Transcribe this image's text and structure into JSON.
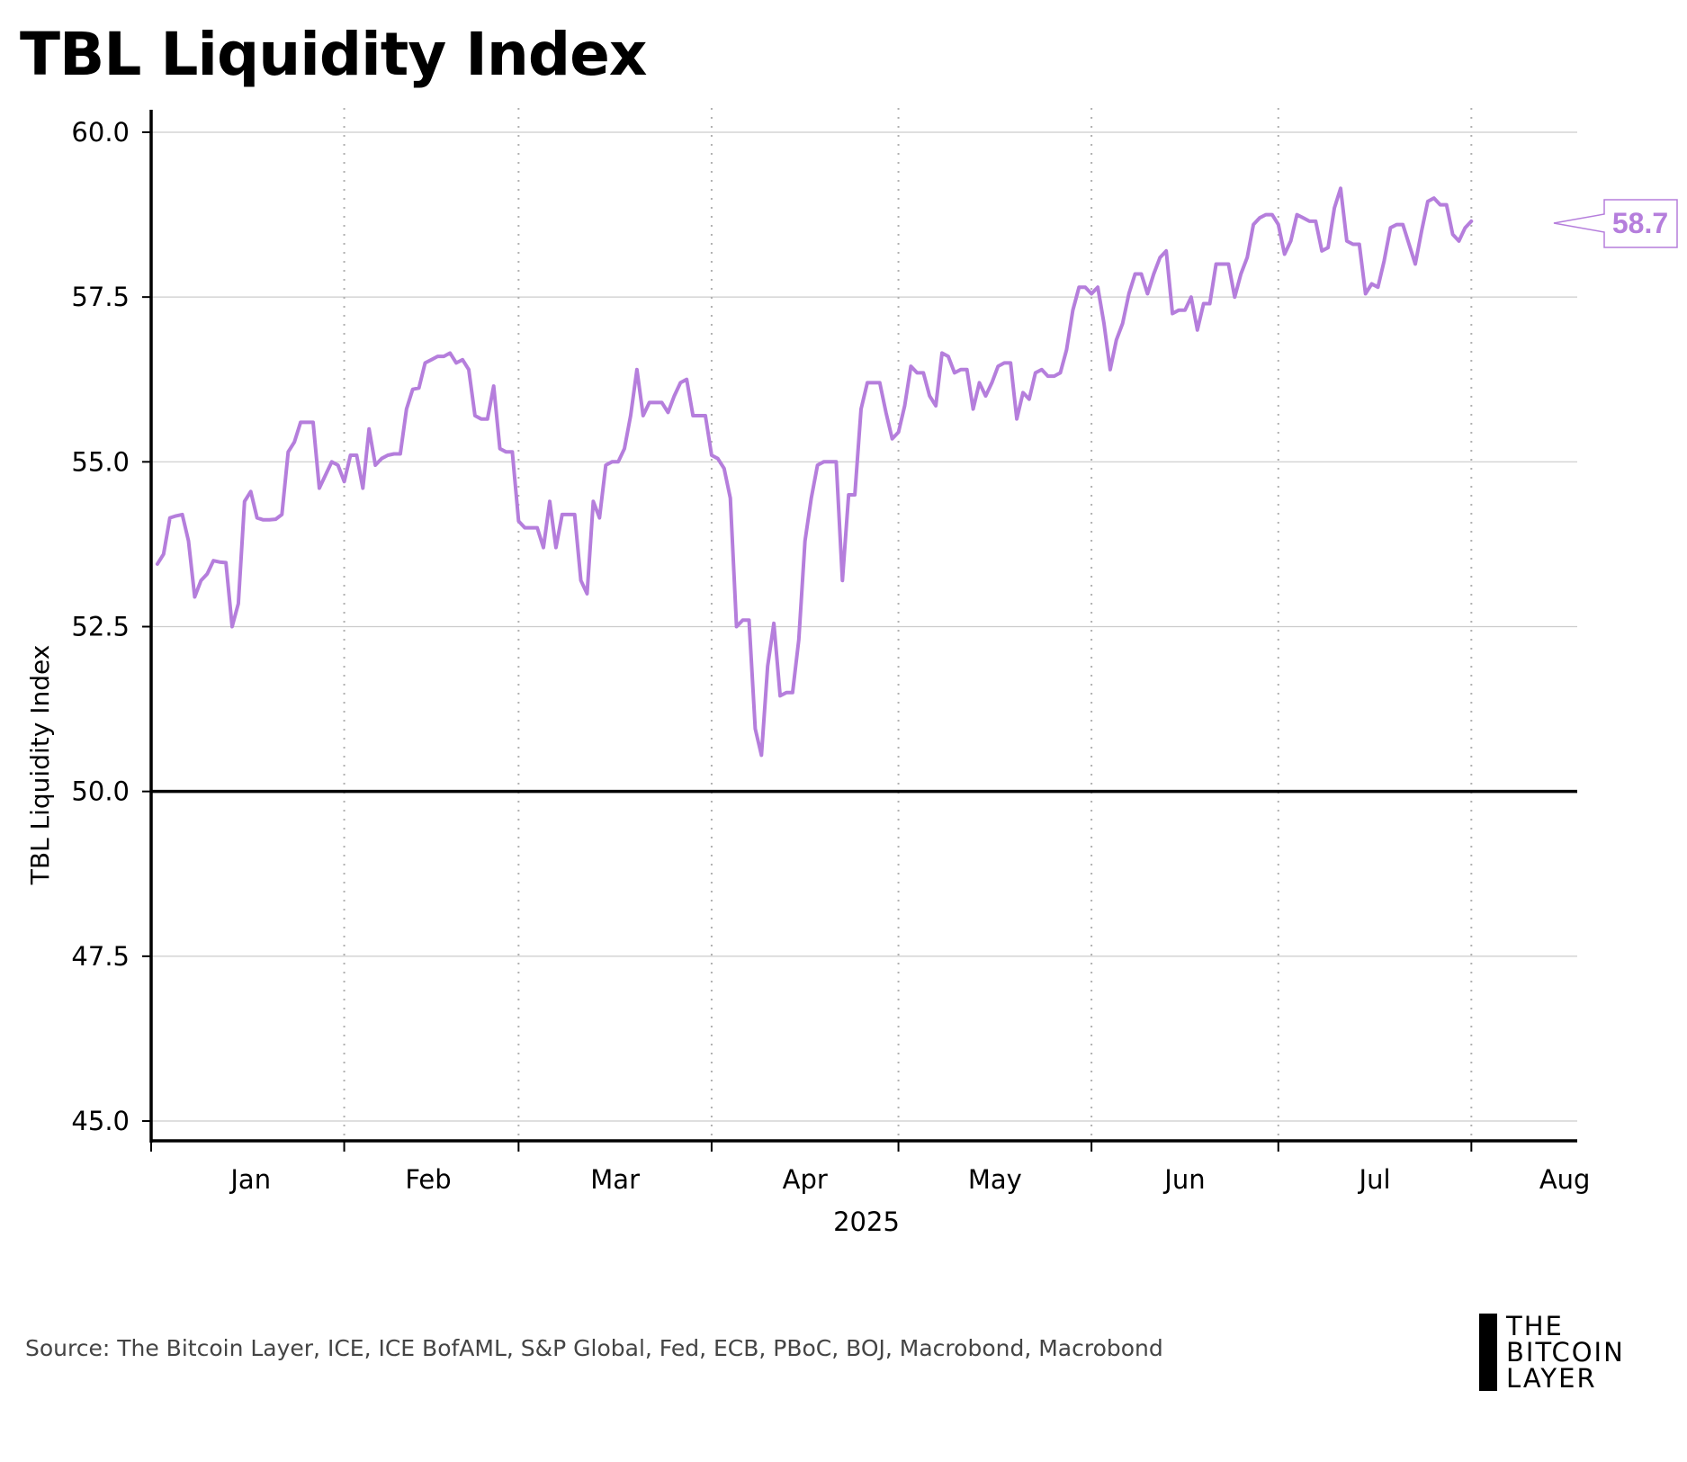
{
  "chart_data": {
    "type": "line",
    "title": "TBL Liquidity Index",
    "ylabel": "TBL Liquidity Index",
    "xlabel": "2025",
    "ylim": [
      44.7,
      60.3
    ],
    "yticks": [
      45.0,
      47.5,
      50.0,
      52.5,
      55.0,
      57.5,
      60.0
    ],
    "ytick_labels": [
      "45.0",
      "47.5",
      "50.0",
      "52.5",
      "55.0",
      "57.5",
      "60.0"
    ],
    "reference_line": 50.0,
    "grid": true,
    "x_domain_days": [
      0,
      229
    ],
    "month_boundaries_days": [
      0,
      31,
      59,
      90,
      120,
      151,
      181,
      212
    ],
    "month_labels": [
      "Jan",
      "Feb",
      "Mar",
      "Apr",
      "May",
      "Jun",
      "Jul",
      "Aug"
    ],
    "month_label_days": [
      16,
      44.5,
      74.5,
      105,
      135.5,
      166,
      196.5,
      227
    ],
    "last_value_label": "58.7",
    "series": [
      {
        "name": "TBL Liquidity Index",
        "color": "#b57edc",
        "points": [
          [
            1,
            53.45
          ],
          [
            2,
            53.6
          ],
          [
            3,
            54.15
          ],
          [
            4,
            54.18
          ],
          [
            5,
            54.2
          ],
          [
            6,
            53.8
          ],
          [
            7,
            52.95
          ],
          [
            8,
            53.2
          ],
          [
            9,
            53.3
          ],
          [
            10,
            53.5
          ],
          [
            11,
            53.48
          ],
          [
            12,
            53.47
          ],
          [
            13,
            52.5
          ],
          [
            14,
            52.85
          ],
          [
            15,
            54.4
          ],
          [
            16,
            54.55
          ],
          [
            17,
            54.15
          ],
          [
            18,
            54.12
          ],
          [
            19,
            54.12
          ],
          [
            20,
            54.13
          ],
          [
            21,
            54.2
          ],
          [
            22,
            55.15
          ],
          [
            23,
            55.3
          ],
          [
            24,
            55.6
          ],
          [
            25,
            55.6
          ],
          [
            26,
            55.6
          ],
          [
            27,
            54.6
          ],
          [
            28,
            54.8
          ],
          [
            29,
            55.0
          ],
          [
            30,
            54.95
          ],
          [
            31,
            54.7
          ],
          [
            32,
            55.1
          ],
          [
            33,
            55.1
          ],
          [
            34,
            54.6
          ],
          [
            35,
            55.5
          ],
          [
            36,
            54.95
          ],
          [
            37,
            55.05
          ],
          [
            38,
            55.1
          ],
          [
            39,
            55.12
          ],
          [
            40,
            55.12
          ],
          [
            41,
            55.8
          ],
          [
            42,
            56.1
          ],
          [
            43,
            56.12
          ],
          [
            44,
            56.5
          ],
          [
            45,
            56.55
          ],
          [
            46,
            56.6
          ],
          [
            47,
            56.6
          ],
          [
            48,
            56.65
          ],
          [
            49,
            56.5
          ],
          [
            50,
            56.55
          ],
          [
            51,
            56.4
          ],
          [
            52,
            55.7
          ],
          [
            53,
            55.65
          ],
          [
            54,
            55.65
          ],
          [
            55,
            56.15
          ],
          [
            56,
            55.2
          ],
          [
            57,
            55.15
          ],
          [
            58,
            55.15
          ],
          [
            59,
            54.1
          ],
          [
            60,
            54.0
          ],
          [
            61,
            54.0
          ],
          [
            62,
            54.0
          ],
          [
            63,
            53.7
          ],
          [
            64,
            54.4
          ],
          [
            65,
            53.7
          ],
          [
            66,
            54.2
          ],
          [
            67,
            54.2
          ],
          [
            68,
            54.2
          ],
          [
            69,
            53.2
          ],
          [
            70,
            53.0
          ],
          [
            71,
            54.4
          ],
          [
            72,
            54.15
          ],
          [
            73,
            54.95
          ],
          [
            74,
            55.0
          ],
          [
            75,
            55.0
          ],
          [
            76,
            55.2
          ],
          [
            77,
            55.7
          ],
          [
            78,
            56.4
          ],
          [
            79,
            55.7
          ],
          [
            80,
            55.9
          ],
          [
            81,
            55.9
          ],
          [
            82,
            55.9
          ],
          [
            83,
            55.75
          ],
          [
            84,
            56.0
          ],
          [
            85,
            56.2
          ],
          [
            86,
            56.25
          ],
          [
            87,
            55.7
          ],
          [
            88,
            55.7
          ],
          [
            89,
            55.7
          ],
          [
            90,
            55.1
          ],
          [
            91,
            55.05
          ],
          [
            92,
            54.9
          ],
          [
            93,
            54.45
          ],
          [
            94,
            52.5
          ],
          [
            95,
            52.6
          ],
          [
            96,
            52.6
          ],
          [
            97,
            50.95
          ],
          [
            98,
            50.55
          ],
          [
            99,
            51.9
          ],
          [
            100,
            52.55
          ],
          [
            101,
            51.45
          ],
          [
            102,
            51.5
          ],
          [
            103,
            51.5
          ],
          [
            104,
            52.3
          ],
          [
            105,
            53.8
          ],
          [
            106,
            54.45
          ],
          [
            107,
            54.95
          ],
          [
            108,
            55.0
          ],
          [
            109,
            55.0
          ],
          [
            110,
            55.0
          ],
          [
            111,
            53.2
          ],
          [
            112,
            54.5
          ],
          [
            113,
            54.5
          ],
          [
            114,
            55.8
          ],
          [
            115,
            56.2
          ],
          [
            116,
            56.2
          ],
          [
            117,
            56.2
          ],
          [
            118,
            55.75
          ],
          [
            119,
            55.35
          ],
          [
            120,
            55.45
          ],
          [
            121,
            55.85
          ],
          [
            122,
            56.45
          ],
          [
            123,
            56.35
          ],
          [
            124,
            56.35
          ],
          [
            125,
            56.0
          ],
          [
            126,
            55.85
          ],
          [
            127,
            56.65
          ],
          [
            128,
            56.6
          ],
          [
            129,
            56.35
          ],
          [
            130,
            56.4
          ],
          [
            131,
            56.4
          ],
          [
            132,
            55.8
          ],
          [
            133,
            56.2
          ],
          [
            134,
            56.0
          ],
          [
            135,
            56.2
          ],
          [
            136,
            56.45
          ],
          [
            137,
            56.5
          ],
          [
            138,
            56.5
          ],
          [
            139,
            55.65
          ],
          [
            140,
            56.05
          ],
          [
            141,
            55.95
          ],
          [
            142,
            56.35
          ],
          [
            143,
            56.4
          ],
          [
            144,
            56.3
          ],
          [
            145,
            56.3
          ],
          [
            146,
            56.35
          ],
          [
            147,
            56.7
          ],
          [
            148,
            57.3
          ],
          [
            149,
            57.65
          ],
          [
            150,
            57.65
          ],
          [
            151,
            57.55
          ],
          [
            152,
            57.65
          ],
          [
            153,
            57.1
          ],
          [
            154,
            56.4
          ],
          [
            155,
            56.85
          ],
          [
            156,
            57.1
          ],
          [
            157,
            57.55
          ],
          [
            158,
            57.85
          ],
          [
            159,
            57.85
          ],
          [
            160,
            57.55
          ],
          [
            161,
            57.85
          ],
          [
            162,
            58.1
          ],
          [
            163,
            58.2
          ],
          [
            164,
            57.25
          ],
          [
            165,
            57.3
          ],
          [
            166,
            57.3
          ],
          [
            167,
            57.5
          ],
          [
            168,
            57.0
          ],
          [
            169,
            57.4
          ],
          [
            170,
            57.4
          ],
          [
            171,
            58.0
          ],
          [
            172,
            58.0
          ],
          [
            173,
            58.0
          ],
          [
            174,
            57.5
          ],
          [
            175,
            57.85
          ],
          [
            176,
            58.1
          ],
          [
            177,
            58.6
          ],
          [
            178,
            58.7
          ],
          [
            179,
            58.75
          ],
          [
            180,
            58.75
          ],
          [
            181,
            58.6
          ],
          [
            182,
            58.15
          ],
          [
            183,
            58.35
          ],
          [
            184,
            58.75
          ],
          [
            185,
            58.7
          ],
          [
            186,
            58.65
          ],
          [
            187,
            58.65
          ],
          [
            188,
            58.2
          ],
          [
            189,
            58.25
          ],
          [
            190,
            58.85
          ],
          [
            191,
            59.15
          ],
          [
            192,
            58.35
          ],
          [
            193,
            58.3
          ],
          [
            194,
            58.3
          ],
          [
            195,
            57.55
          ],
          [
            196,
            57.7
          ],
          [
            197,
            57.65
          ],
          [
            198,
            58.05
          ],
          [
            199,
            58.55
          ],
          [
            200,
            58.6
          ],
          [
            201,
            58.6
          ],
          [
            202,
            58.3
          ],
          [
            203,
            58.0
          ],
          [
            204,
            58.5
          ],
          [
            205,
            58.95
          ],
          [
            206,
            59.0
          ],
          [
            207,
            58.9
          ],
          [
            208,
            58.9
          ],
          [
            209,
            58.45
          ],
          [
            210,
            58.35
          ],
          [
            211,
            58.55
          ],
          [
            212,
            58.65
          ]
        ]
      }
    ]
  },
  "footer": {
    "source": "Source: The Bitcoin Layer, ICE, ICE BofAML, S&P Global, Fed, ECB, PBoC, BOJ, Macrobond, Macrobond"
  },
  "logo": {
    "lines": [
      "THE",
      "BITCOIN",
      "LAYER"
    ]
  }
}
